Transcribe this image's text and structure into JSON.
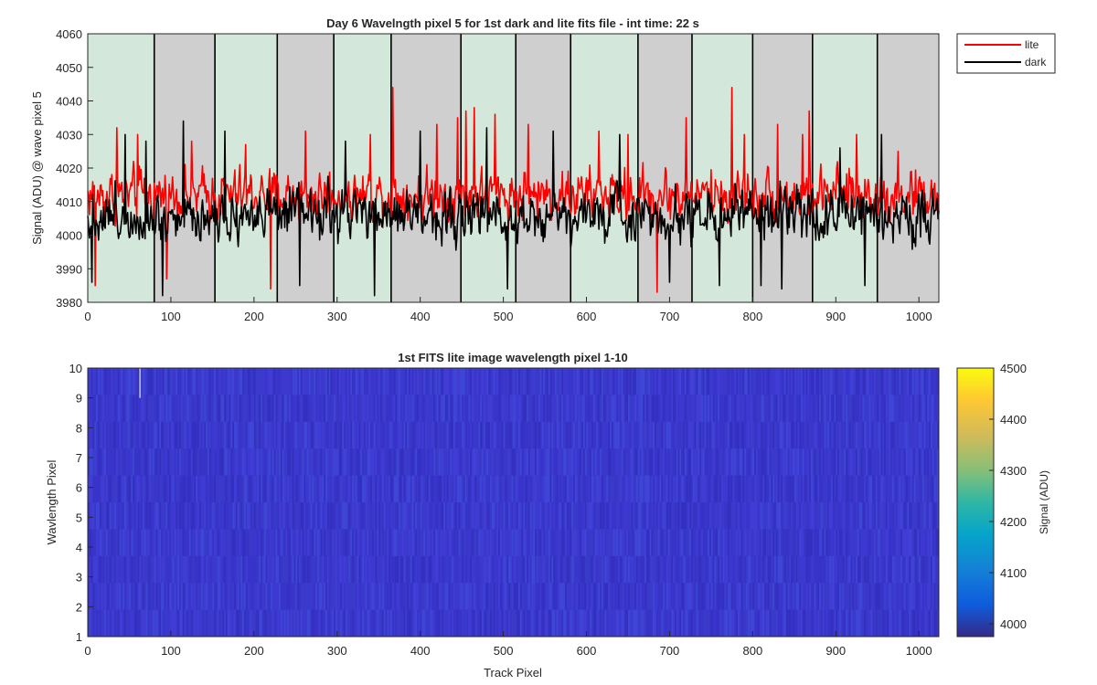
{
  "chart_data": [
    {
      "type": "line",
      "title": "Day 6 Wavelngth pixel 5 for 1st dark and lite fits file - int time: 22 s",
      "xlabel": "",
      "ylabel": "Signal (ADU) @ wave pixel 5",
      "xlim": [
        0,
        1024
      ],
      "ylim": [
        3980,
        4060
      ],
      "xticks": [
        0,
        100,
        200,
        300,
        400,
        500,
        600,
        700,
        800,
        900,
        1000
      ],
      "yticks": [
        3980,
        3990,
        4000,
        4010,
        4020,
        4030,
        4040,
        4050,
        4060
      ],
      "legend_position": "top-right outside",
      "bands": {
        "boundaries": [
          0,
          80,
          153,
          228,
          296,
          365,
          449,
          515,
          581,
          662,
          727,
          800,
          872,
          950,
          1024
        ],
        "colors": [
          "#d3e8da",
          "#cfcfcf"
        ]
      },
      "series": [
        {
          "name": "lite",
          "color": "#ff0000",
          "mean": 4012,
          "noise": 5.5,
          "spikes": [
            [
              9,
              3985
            ],
            [
              35,
              4032
            ],
            [
              60,
              4030
            ],
            [
              95,
              3987
            ],
            [
              125,
              4028
            ],
            [
              190,
              4027
            ],
            [
              220,
              3984
            ],
            [
              262,
              4031
            ],
            [
              340,
              4030
            ],
            [
              367,
              4044
            ],
            [
              420,
              4033
            ],
            [
              445,
              4035
            ],
            [
              455,
              4037
            ],
            [
              465,
              4038
            ],
            [
              490,
              4036
            ],
            [
              530,
              4033
            ],
            [
              615,
              4031
            ],
            [
              650,
              4030
            ],
            [
              685,
              3983
            ],
            [
              720,
              4035
            ],
            [
              775,
              4044
            ],
            [
              790,
              4030
            ],
            [
              830,
              4033
            ],
            [
              860,
              4030
            ],
            [
              868,
              4037
            ],
            [
              925,
              4030
            ],
            [
              975,
              4025
            ]
          ]
        },
        {
          "name": "dark",
          "color": "#000000",
          "mean": 4006,
          "noise": 5.5,
          "spikes": [
            [
              5,
              3986
            ],
            [
              45,
              4030
            ],
            [
              70,
              4028
            ],
            [
              90,
              3982
            ],
            [
              115,
              4034
            ],
            [
              165,
              4031
            ],
            [
              255,
              3985
            ],
            [
              310,
              4028
            ],
            [
              345,
              3982
            ],
            [
              400,
              4031
            ],
            [
              480,
              4032
            ],
            [
              505,
              3984
            ],
            [
              560,
              4031
            ],
            [
              640,
              4030
            ],
            [
              700,
              3986
            ],
            [
              760,
              3985
            ],
            [
              810,
              3985
            ],
            [
              835,
              3984
            ],
            [
              905,
              4026
            ],
            [
              935,
              3985
            ],
            [
              955,
              4030
            ]
          ]
        }
      ]
    },
    {
      "type": "heatmap",
      "title": "1st FITS lite image wavelength pixel 1-10",
      "xlabel": "Track Pixel",
      "ylabel": "Wavlength Pixel",
      "xlim": [
        0,
        1024
      ],
      "ylim": [
        1,
        10
      ],
      "xticks": [
        0,
        100,
        200,
        300,
        400,
        500,
        600,
        700,
        800,
        900,
        1000
      ],
      "yticks": [
        1,
        2,
        3,
        4,
        5,
        6,
        7,
        8,
        9,
        10
      ],
      "colorbar": {
        "label": "Signal (ADU)",
        "range": [
          3975,
          4500
        ],
        "ticks": [
          4000,
          4100,
          4200,
          4300,
          4400,
          4500
        ]
      },
      "rows": 10,
      "cols": 1024,
      "typical_value": 4005,
      "hot_pixel": {
        "track": 62,
        "wavelength": 10,
        "color": "#c8c8a8"
      }
    }
  ]
}
